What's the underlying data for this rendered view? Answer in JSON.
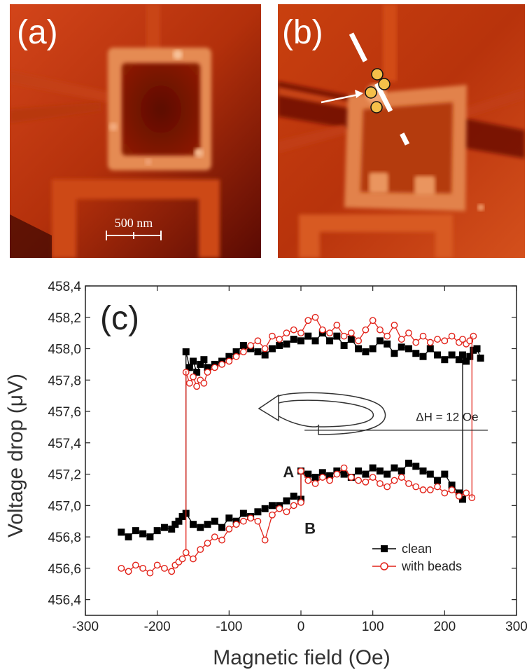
{
  "panels": {
    "a": {
      "label": "(a)",
      "scale_bar_label": "500 nm"
    },
    "b": {
      "label": "(b)"
    }
  },
  "colors": {
    "afm_dark": "#6e0f04",
    "afm_mid": "#c2370c",
    "afm_bright": "#f7b48c",
    "clean": "#000000",
    "with_beads": "#e2231a"
  },
  "chart_data": {
    "type": "line",
    "panel_label": "(c)",
    "xlabel": "Magnetic field (Oe)",
    "ylabel": "Voltage drop (μV)",
    "xlim": [
      -300,
      300
    ],
    "ylim": [
      456.3,
      458.4
    ],
    "x_ticks": [
      "-300",
      "-200",
      "-100",
      "0",
      "100",
      "200",
      "300"
    ],
    "y_ticks": [
      "456,4",
      "456,6",
      "456,8",
      "457,0",
      "457,2",
      "457,4",
      "457,6",
      "457,8",
      "458,0",
      "458,2",
      "458,4"
    ],
    "legend_position": "bottom-right",
    "annotations": {
      "branch_a": "A",
      "branch_b": "B",
      "delta_h": "ΔH = 12 Oe"
    },
    "series": [
      {
        "name": "clean",
        "color": "#000000",
        "marker": "filled-square",
        "upper_branch": {
          "x": [
            -160,
            -155,
            -150,
            -145,
            -140,
            -135,
            -130,
            -120,
            -110,
            -100,
            -90,
            -80,
            -70,
            -60,
            -50,
            -40,
            -30,
            -20,
            -10,
            0,
            10,
            20,
            30,
            40,
            50,
            60,
            70,
            80,
            90,
            100,
            110,
            120,
            130,
            140,
            150,
            160,
            170,
            180,
            190,
            200,
            210,
            220,
            225,
            230,
            235,
            240,
            245,
            250
          ],
          "y": [
            457.98,
            457.88,
            457.92,
            457.85,
            457.9,
            457.93,
            457.88,
            457.9,
            457.92,
            457.95,
            457.98,
            458.02,
            458.0,
            457.98,
            457.96,
            458.0,
            458.02,
            458.03,
            458.06,
            458.05,
            458.08,
            458.05,
            458.1,
            458.05,
            458.08,
            458.02,
            458.06,
            458.0,
            457.98,
            458.0,
            458.05,
            458.03,
            457.97,
            458.01,
            458.0,
            457.97,
            457.95,
            458.0,
            457.96,
            457.93,
            457.96,
            457.93,
            457.96,
            457.92,
            457.95,
            457.99,
            458.0,
            457.94
          ]
        },
        "lower_branch": {
          "x": [
            -250,
            -240,
            -230,
            -220,
            -210,
            -200,
            -190,
            -180,
            -175,
            -170,
            -165,
            -160,
            -150,
            -140,
            -130,
            -120,
            -110,
            -100,
            -90,
            -80,
            -70,
            -60,
            -50,
            -40,
            -30,
            -20,
            -10,
            0,
            0,
            10,
            20,
            30,
            40,
            50,
            60,
            70,
            80,
            90,
            100,
            110,
            120,
            130,
            140,
            150,
            160,
            170,
            180,
            190,
            200,
            210,
            220,
            225
          ],
          "y": [
            456.83,
            456.8,
            456.84,
            456.82,
            456.8,
            456.84,
            456.86,
            456.85,
            456.88,
            456.9,
            456.93,
            456.95,
            456.88,
            456.86,
            456.88,
            456.9,
            456.86,
            456.92,
            456.9,
            456.95,
            456.93,
            456.96,
            456.98,
            457.0,
            457.0,
            457.03,
            457.06,
            457.04,
            457.22,
            457.2,
            457.18,
            457.21,
            457.19,
            457.22,
            457.2,
            457.18,
            457.22,
            457.2,
            457.24,
            457.22,
            457.2,
            457.24,
            457.22,
            457.27,
            457.25,
            457.22,
            457.2,
            457.16,
            457.2,
            457.13,
            457.08,
            457.04
          ]
        },
        "switch_up": {
          "x": -160,
          "y_from": 456.96,
          "y_to": 457.98
        },
        "switch_down": {
          "x": 225,
          "y_from": 457.93,
          "y_to": 457.08
        }
      },
      {
        "name": "with beads",
        "color": "#e2231a",
        "marker": "open-circle",
        "upper_branch": {
          "x": [
            -160,
            -155,
            -150,
            -145,
            -140,
            -135,
            -130,
            -120,
            -110,
            -100,
            -90,
            -80,
            -70,
            -60,
            -50,
            -40,
            -30,
            -20,
            -10,
            0,
            10,
            20,
            30,
            40,
            50,
            60,
            70,
            80,
            90,
            100,
            110,
            120,
            130,
            140,
            150,
            160,
            170,
            180,
            190,
            200,
            210,
            220,
            225,
            230,
            235,
            240
          ],
          "y": [
            457.85,
            457.78,
            457.82,
            457.76,
            457.8,
            457.78,
            457.85,
            457.88,
            457.9,
            457.92,
            457.95,
            457.98,
            458.02,
            458.05,
            458.0,
            458.08,
            458.06,
            458.1,
            458.12,
            458.1,
            458.18,
            458.2,
            458.12,
            458.1,
            458.15,
            458.08,
            458.1,
            458.05,
            458.12,
            458.18,
            458.12,
            458.08,
            458.15,
            458.06,
            458.1,
            458.04,
            458.08,
            458.04,
            458.06,
            458.05,
            458.08,
            458.04,
            458.06,
            458.03,
            458.05,
            458.08
          ]
        },
        "lower_branch": {
          "x": [
            -250,
            -240,
            -230,
            -220,
            -210,
            -200,
            -190,
            -180,
            -175,
            -170,
            -165,
            -160,
            -150,
            -140,
            -130,
            -120,
            -110,
            -100,
            -90,
            -80,
            -70,
            -60,
            -50,
            -40,
            -30,
            -20,
            -10,
            0,
            0,
            10,
            20,
            30,
            40,
            50,
            60,
            70,
            80,
            90,
            100,
            110,
            120,
            130,
            140,
            150,
            160,
            170,
            180,
            190,
            200,
            210,
            220,
            230,
            238
          ],
          "y": [
            456.6,
            456.58,
            456.62,
            456.6,
            456.57,
            456.62,
            456.6,
            456.58,
            456.62,
            456.64,
            456.66,
            456.7,
            456.66,
            456.72,
            456.76,
            456.8,
            456.78,
            456.85,
            456.88,
            456.9,
            456.92,
            456.9,
            456.78,
            456.94,
            456.98,
            456.96,
            457.0,
            457.02,
            457.22,
            457.16,
            457.14,
            457.18,
            457.16,
            457.2,
            457.24,
            457.18,
            457.16,
            457.15,
            457.18,
            457.14,
            457.12,
            457.16,
            457.18,
            457.14,
            457.12,
            457.1,
            457.1,
            457.12,
            457.08,
            457.1,
            457.06,
            457.08,
            457.05
          ]
        },
        "switch_up": {
          "x": -160,
          "y_from": 456.72,
          "y_to": 457.86
        },
        "switch_down": {
          "x": 238,
          "y_from": 458.08,
          "y_to": 457.05
        }
      }
    ]
  }
}
